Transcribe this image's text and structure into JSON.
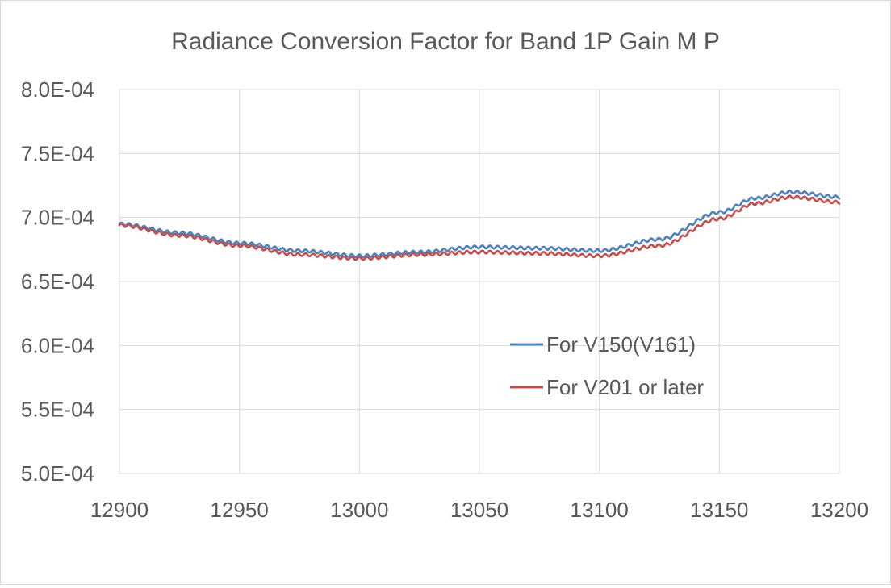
{
  "chart_data": {
    "type": "line",
    "title": "Radiance Conversion Factor for Band 1P Gain M P",
    "xlabel": "",
    "ylabel": "",
    "xlim": [
      12900,
      13200
    ],
    "ylim": [
      0.0005,
      0.0008
    ],
    "x_ticks": [
      12900,
      12950,
      13000,
      13050,
      13100,
      13150,
      13200
    ],
    "x_tick_labels": [
      "12900",
      "12950",
      "13000",
      "13050",
      "13100",
      "13150",
      "13200"
    ],
    "y_ticks": [
      0.0005,
      0.00055,
      0.0006,
      0.00065,
      0.0007,
      0.00075,
      0.0008
    ],
    "y_tick_labels": [
      "5.0E-04",
      "5.5E-04",
      "6.0E-04",
      "6.5E-04",
      "7.0E-04",
      "7.5E-04",
      "8.0E-04"
    ],
    "grid": "vertical and horizontal",
    "legend": "inside, center-right",
    "x": [
      12900,
      12925,
      12950,
      12975,
      13000,
      13025,
      13050,
      13075,
      13100,
      13125,
      13150,
      13165,
      13180,
      13200
    ],
    "series": [
      {
        "name": "For V150(V161)",
        "color": "#4f81bd",
        "values": [
          0.000695,
          0.000688,
          0.00068,
          0.000674,
          0.00067,
          0.000673,
          0.000677,
          0.000676,
          0.000674,
          0.000683,
          0.000704,
          0.000715,
          0.00072,
          0.000716
        ]
      },
      {
        "name": "For V201 or later",
        "color": "#c0504d",
        "values": [
          0.000694,
          0.000686,
          0.000678,
          0.000671,
          0.000668,
          0.000671,
          0.000673,
          0.000672,
          0.00067,
          0.000678,
          0.000699,
          0.000711,
          0.000716,
          0.000712
        ]
      }
    ]
  }
}
